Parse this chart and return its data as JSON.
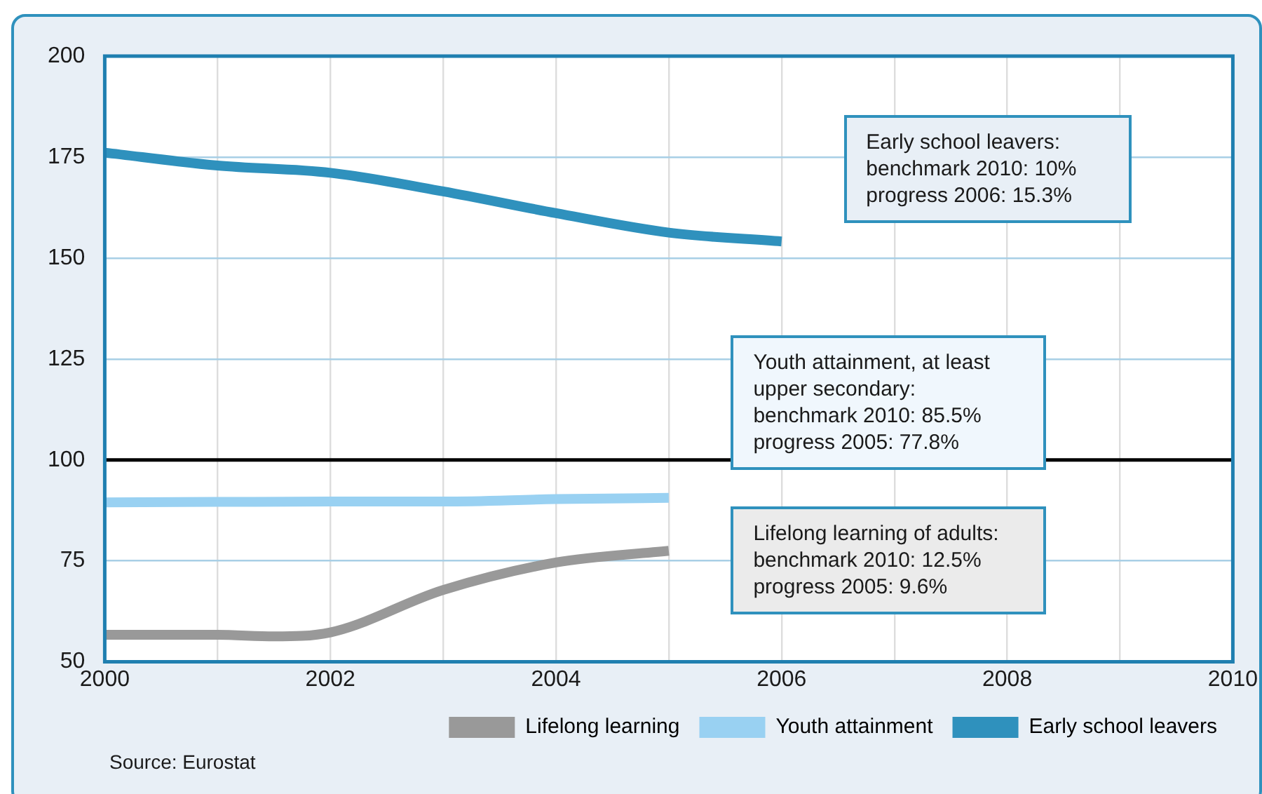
{
  "chart_data": {
    "type": "line",
    "series": [
      {
        "name": "Lifelong learning",
        "color": "#999999",
        "x": [
          2000,
          2001,
          2001.5,
          2002,
          2003,
          2004,
          2005
        ],
        "values": [
          56.7,
          56.7,
          56.3,
          57.3,
          67.8,
          74.6,
          77.5
        ]
      },
      {
        "name": "Youth attainment",
        "color": "#99d1f2",
        "x": [
          2000,
          2001,
          2002,
          2003,
          2004,
          2005
        ],
        "values": [
          89.5,
          89.6,
          89.7,
          89.7,
          90.3,
          90.6
        ]
      },
      {
        "name": "Early school leavers",
        "color": "#2f91bd",
        "x": [
          2000,
          2001,
          2002,
          2003,
          2004,
          2005,
          2006
        ],
        "values": [
          176.1,
          172.9,
          171.1,
          166.5,
          161.1,
          156.3,
          154.1
        ]
      }
    ],
    "xlim": [
      2000,
      2010
    ],
    "xticks": [
      2000,
      {
        "value": 2001,
        "label": null
      },
      2002,
      {
        "value": 2003,
        "label": null
      },
      2004,
      {
        "value": 2005,
        "label": null
      },
      2006,
      {
        "value": 2007,
        "label": null
      },
      2008,
      {
        "value": 2009,
        "label": null
      },
      2010
    ],
    "ylim": [
      50,
      200
    ],
    "yticks": [
      50,
      75,
      100,
      125,
      150,
      175,
      200
    ],
    "ref_lines": [
      {
        "axis": "y",
        "value": 100,
        "color": "#000000"
      }
    ],
    "grid": true,
    "legend": "bottom right",
    "marker": "none",
    "line_style": "solid",
    "annotations": [
      "Early school leavers:\nbenchmark 2010: 10%\nprogress 2006: 15.3%",
      "Youth attainment, at least\nupper secondary:\nbenchmark 2010: 85.5%\nprogress 2005: 77.8%",
      "Lifelong learning of adults:\nbenchmark 2010: 12.5%\nprogress 2005: 9.6%",
      "Source: Eurostat"
    ]
  }
}
